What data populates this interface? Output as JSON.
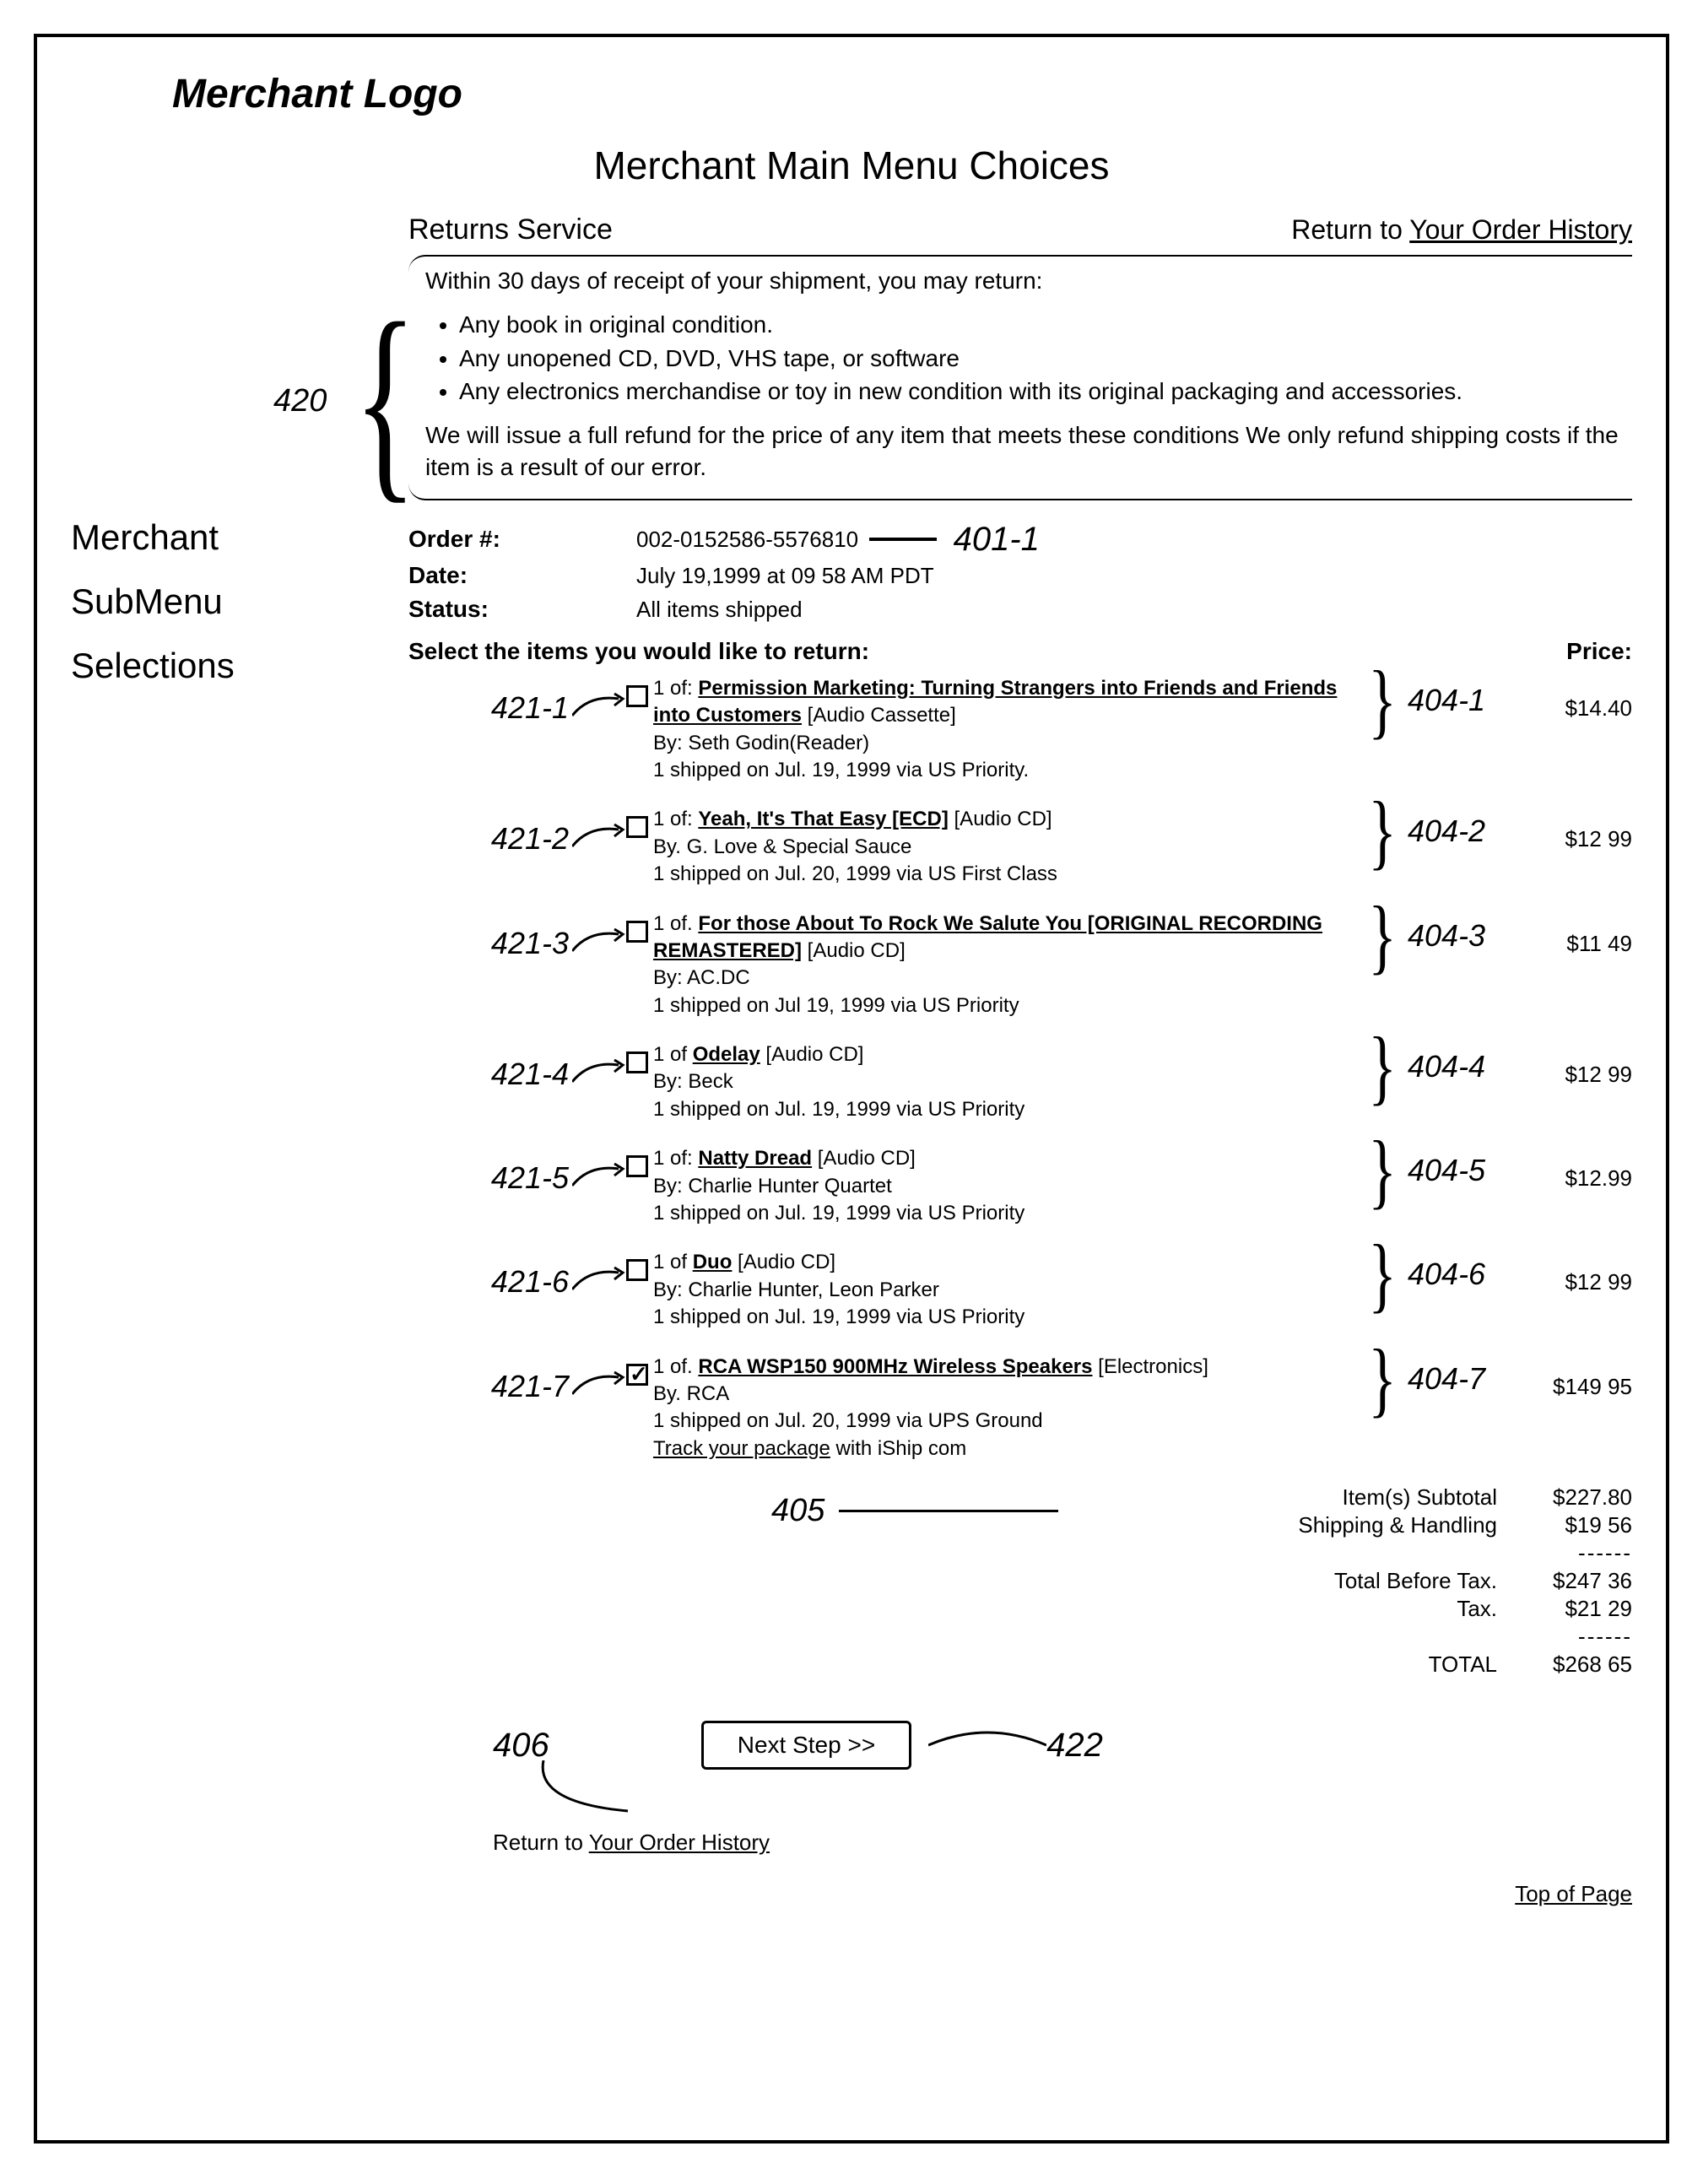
{
  "logo_text": "Merchant Logo",
  "main_menu_title": "Merchant Main Menu Choices",
  "annotations": {
    "policy": "420",
    "order_number": "401-1",
    "totals": "405",
    "next_step_left": "406",
    "next_step_right": "422"
  },
  "sidebar": {
    "line1": "Merchant",
    "line2": "SubMenu",
    "line3": "Selections"
  },
  "header": {
    "section_title": "Returns Service",
    "return_prefix": "Return to ",
    "return_link": "Your Order History"
  },
  "policy": {
    "intro": "Within 30 days of receipt of your shipment, you may return:",
    "bullets": [
      "Any book in original condition.",
      "Any unopened CD, DVD, VHS tape, or software",
      "Any electronics merchandise or toy in new condition with its original packaging and accessories."
    ],
    "outro": "We will issue a full refund for the price of any item that meets these conditions   We only refund shipping costs if the item is a result of our error."
  },
  "order_meta": {
    "order_label": "Order #:",
    "order_value": "002-0152586-5576810",
    "date_label": "Date:",
    "date_value": "July 19,1999 at 09 58 AM PDT",
    "status_label": "Status:",
    "status_value": "All items shipped"
  },
  "select_prompt": "Select the items you would like to return:",
  "price_heading": "Price:",
  "items": [
    {
      "left_annot": "421-1",
      "checked": false,
      "qty_prefix": "1 of: ",
      "title": "Permission Marketing: Turning Strangers into Friends and Friends into Customers",
      "format": " [Audio Cassette]",
      "by": "By: Seth Godin(Reader)",
      "ship": "1 shipped on Jul. 19, 1999 via US Priority.",
      "right_annot": "404-1",
      "price": "$14.40"
    },
    {
      "left_annot": "421-2",
      "checked": false,
      "qty_prefix": "1 of: ",
      "title": "Yeah, It's That Easy [ECD]",
      "format": " [Audio CD]",
      "by": "By. G. Love & Special Sauce",
      "ship": "1 shipped on Jul. 20, 1999 via US First Class",
      "right_annot": "404-2",
      "price": "$12 99"
    },
    {
      "left_annot": "421-3",
      "checked": false,
      "qty_prefix": "1 of. ",
      "title": "For those About To Rock We Salute You [ORIGINAL RECORDING REMASTERED]",
      "format": " [Audio CD]",
      "by": "By: AC.DC",
      "ship": "1 shipped on Jul  19, 1999 via US Priority",
      "right_annot": "404-3",
      "price": "$11 49"
    },
    {
      "left_annot": "421-4",
      "checked": false,
      "qty_prefix": "1 of  ",
      "title": "Odelay",
      "format": " [Audio CD]",
      "by": "By: Beck",
      "ship": "1 shipped on Jul. 19, 1999 via US Priority",
      "right_annot": "404-4",
      "price": "$12 99"
    },
    {
      "left_annot": "421-5",
      "checked": false,
      "qty_prefix": "1 of: ",
      "title": "Natty Dread",
      "format": " [Audio CD]",
      "by": "By: Charlie Hunter Quartet",
      "ship": "1 shipped on Jul. 19, 1999 via US Priority",
      "right_annot": "404-5",
      "price": "$12.99"
    },
    {
      "left_annot": "421-6",
      "checked": false,
      "qty_prefix": "1 of ",
      "title": "Duo",
      "format": " [Audio CD]",
      "by": "By: Charlie Hunter, Leon Parker",
      "ship": "1 shipped on Jul. 19, 1999 via US Priority",
      "right_annot": "404-6",
      "price": "$12 99"
    },
    {
      "left_annot": "421-7",
      "checked": true,
      "qty_prefix": "1 of. ",
      "title": "RCA WSP150 900MHz Wireless Speakers",
      "format": "  [Electronics]",
      "by": "By. RCA",
      "ship": "1 shipped on Jul. 20, 1999 via UPS Ground",
      "track_prefix": "Track your package",
      "track_suffix": " with iShip com",
      "right_annot": "404-7",
      "price": "$149 95"
    }
  ],
  "totals": {
    "rows1": [
      {
        "label": "Item(s) Subtotal",
        "value": "$227.80"
      },
      {
        "label": "Shipping & Handling",
        "value": "$19 56"
      }
    ],
    "rows2": [
      {
        "label": "Total Before Tax.",
        "value": "$247 36"
      },
      {
        "label": "Tax.",
        "value": "$21 29"
      }
    ],
    "total_label": "TOTAL",
    "total_value": "$268 65",
    "sep": "------"
  },
  "next_button": "Next Step >>",
  "bottom_return_prefix": "Return to ",
  "bottom_return_link": "Your Order History",
  "top_of_page": "Top of Page"
}
